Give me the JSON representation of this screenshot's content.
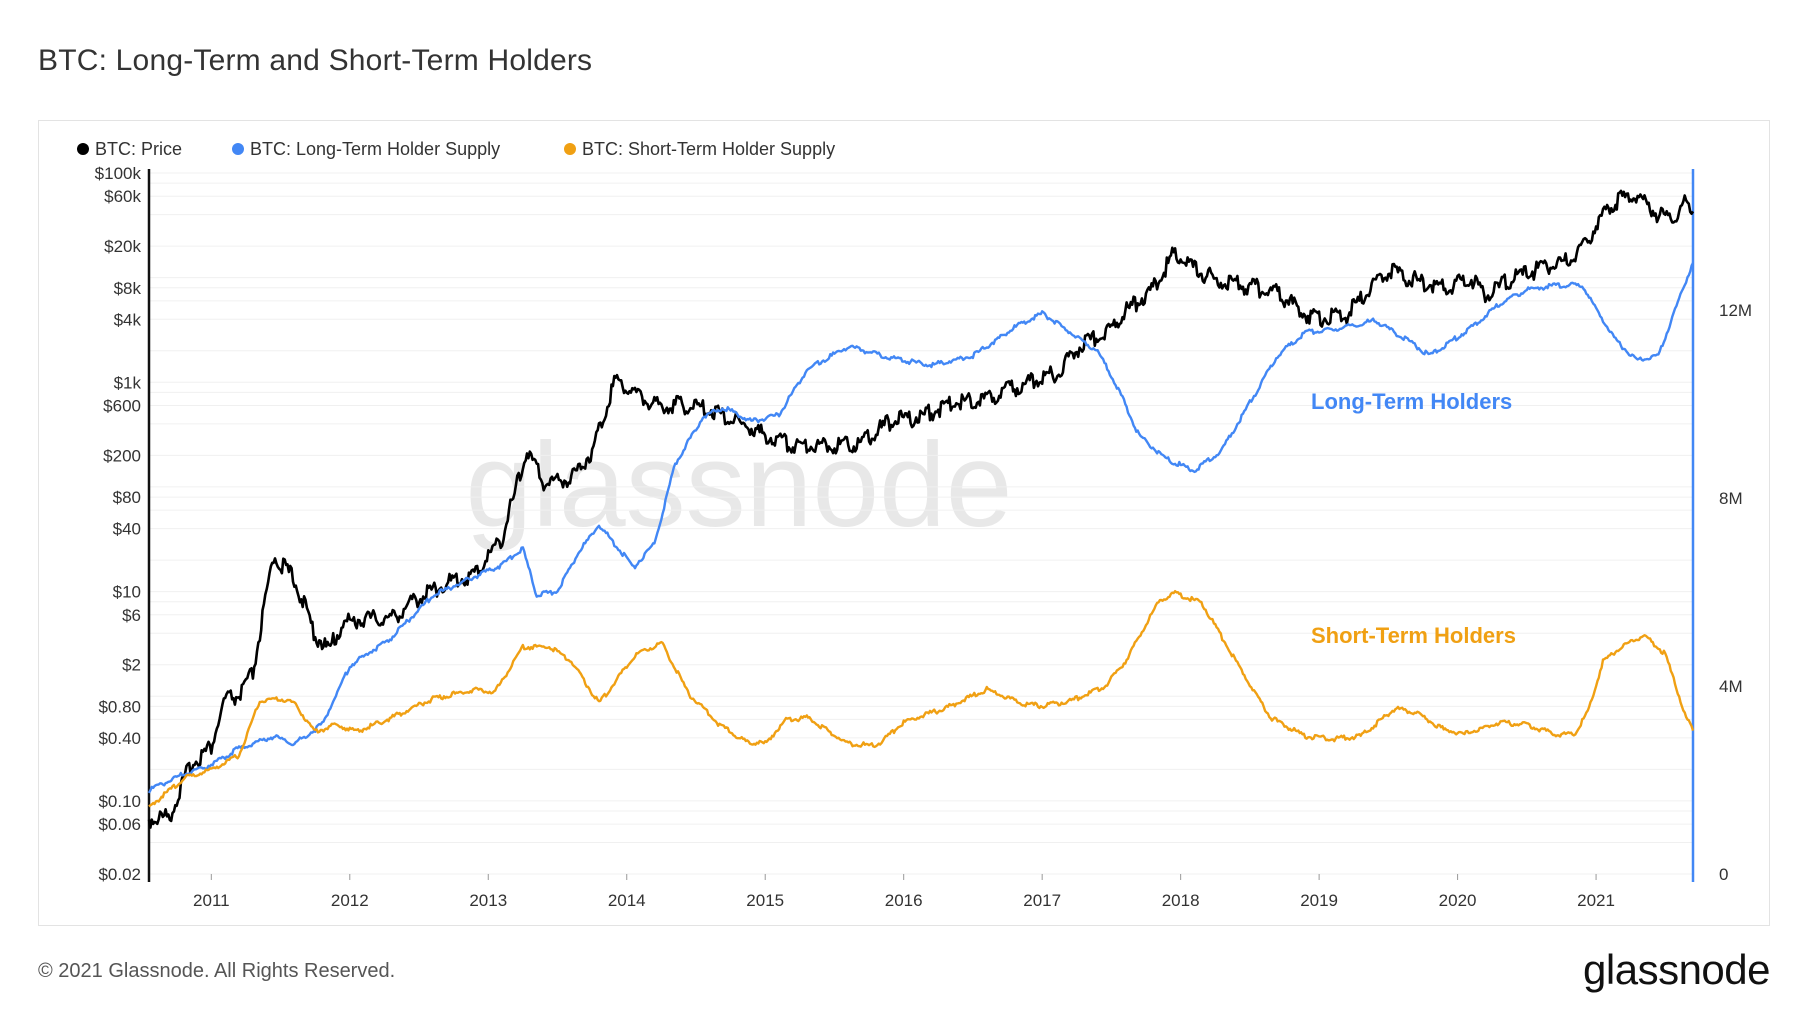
{
  "page": {
    "title": "BTC: Long-Term and Short-Term Holders",
    "copyright": "© 2021 Glassnode. All Rights Reserved.",
    "brand": "glassnode",
    "watermark": "glassnode"
  },
  "chart_data": {
    "type": "line",
    "title": "BTC: Long-Term and Short-Term Holders",
    "x_axis": {
      "ticks": [
        "2011",
        "2012",
        "2013",
        "2014",
        "2015",
        "2016",
        "2017",
        "2018",
        "2019",
        "2020",
        "2021"
      ],
      "range": [
        "2010-07",
        "2021-09"
      ]
    },
    "y_left": {
      "scale": "log",
      "ticks": [
        "$100k",
        "$60k",
        "$20k",
        "$8k",
        "$4k",
        "$1k",
        "$600",
        "$200",
        "$80",
        "$40",
        "$10",
        "$6",
        "$2",
        "$0.80",
        "$0.40",
        "$0.10",
        "$0.06",
        "$0.02"
      ],
      "tick_values": [
        100000,
        60000,
        20000,
        8000,
        4000,
        1000,
        600,
        200,
        80,
        40,
        10,
        6,
        2,
        0.8,
        0.4,
        0.1,
        0.06,
        0.02
      ],
      "range": [
        0.02,
        100000
      ]
    },
    "y_right": {
      "scale": "linear",
      "ticks": [
        "12M",
        "8M",
        "4M",
        "0"
      ],
      "tick_values": [
        12000000,
        8000000,
        4000000,
        0
      ],
      "range": [
        0,
        12000000
      ]
    },
    "legend": {
      "position": "top-left",
      "entries": [
        "BTC: Price",
        "BTC: Long-Term Holder Supply",
        "BTC: Short-Term Holder Supply"
      ]
    },
    "annotations": [
      {
        "text": "Long-Term Holders",
        "color": "#4287f5"
      },
      {
        "text": "Short-Term Holders",
        "color": "#f0a013"
      }
    ],
    "series": [
      {
        "name": "BTC: Price",
        "axis": "left",
        "color": "#000000",
        "x": [
          2010.55,
          2010.7,
          2010.85,
          2011.0,
          2011.1,
          2011.2,
          2011.3,
          2011.45,
          2011.6,
          2011.75,
          2011.85,
          2011.95,
          2012.1,
          2012.3,
          2012.5,
          2012.7,
          2012.9,
          2013.1,
          2013.28,
          2013.4,
          2013.6,
          2013.75,
          2013.92,
          2014.0,
          2014.2,
          2014.4,
          2014.6,
          2014.8,
          2015.0,
          2015.2,
          2015.5,
          2015.7,
          2015.9,
          2016.1,
          2016.4,
          2016.6,
          2016.9,
          2017.1,
          2017.3,
          2017.45,
          2017.6,
          2017.8,
          2017.96,
          2018.1,
          2018.3,
          2018.5,
          2018.7,
          2018.9,
          2019.0,
          2019.2,
          2019.5,
          2019.7,
          2019.9,
          2020.1,
          2020.2,
          2020.4,
          2020.6,
          2020.8,
          2020.95,
          2021.1,
          2021.28,
          2021.45,
          2021.55,
          2021.65,
          2021.7
        ],
        "y": [
          0.06,
          0.065,
          0.2,
          0.3,
          0.85,
          0.9,
          1.5,
          20,
          12,
          3.5,
          2.5,
          4.5,
          5,
          5,
          8,
          11,
          13,
          30,
          200,
          100,
          110,
          200,
          1000,
          800,
          550,
          550,
          500,
          380,
          280,
          230,
          230,
          240,
          380,
          420,
          600,
          630,
          900,
          1100,
          2200,
          2600,
          4300,
          7000,
          16000,
          11000,
          8000,
          7500,
          6500,
          4000,
          3700,
          4000,
          10500,
          8500,
          7300,
          9000,
          6000,
          9000,
          11000,
          13000,
          22000,
          45000,
          58000,
          36000,
          34000,
          48000,
          43000
        ]
      },
      {
        "name": "BTC: Long-Term Holder Supply",
        "axis": "right",
        "color": "#4287f5",
        "x": [
          2010.55,
          2010.8,
          2011.0,
          2011.2,
          2011.45,
          2011.6,
          2011.8,
          2012.0,
          2012.3,
          2012.6,
          2012.9,
          2013.1,
          2013.25,
          2013.35,
          2013.5,
          2013.65,
          2013.8,
          2014.05,
          2014.2,
          2014.35,
          2014.55,
          2014.7,
          2014.9,
          2015.1,
          2015.3,
          2015.6,
          2015.9,
          2016.2,
          2016.5,
          2016.8,
          2017.0,
          2017.2,
          2017.4,
          2017.55,
          2017.7,
          2017.9,
          2018.1,
          2018.3,
          2018.5,
          2018.7,
          2018.9,
          2019.1,
          2019.4,
          2019.6,
          2019.8,
          2020.0,
          2020.1,
          2020.3,
          2020.5,
          2020.7,
          2020.9,
          2021.0,
          2021.15,
          2021.3,
          2021.45,
          2021.6,
          2021.7
        ],
        "y": [
          1.75,
          2.1,
          2.3,
          2.65,
          2.9,
          2.75,
          3.15,
          4.4,
          5.0,
          5.9,
          6.3,
          6.55,
          6.9,
          5.9,
          6.0,
          6.8,
          7.4,
          6.5,
          7.0,
          8.7,
          9.7,
          9.9,
          9.6,
          9.75,
          10.7,
          11.2,
          10.95,
          10.8,
          11.0,
          11.6,
          11.9,
          11.5,
          11.1,
          10.3,
          9.3,
          8.8,
          8.55,
          9.0,
          10.0,
          11.0,
          11.5,
          11.55,
          11.75,
          11.4,
          11.0,
          11.4,
          11.6,
          12.1,
          12.4,
          12.5,
          12.5,
          12.0,
          11.3,
          10.9,
          11.0,
          12.2,
          13.0
        ]
      },
      {
        "name": "BTC: Short-Term Holder Supply",
        "axis": "right",
        "color": "#f0a013",
        "x": [
          2010.55,
          2010.8,
          2011.0,
          2011.2,
          2011.35,
          2011.5,
          2011.6,
          2011.75,
          2011.9,
          2012.05,
          2012.3,
          2012.6,
          2012.9,
          2013.05,
          2013.25,
          2013.45,
          2013.6,
          2013.8,
          2014.05,
          2014.25,
          2014.45,
          2014.65,
          2014.85,
          2015.0,
          2015.15,
          2015.3,
          2015.6,
          2015.8,
          2016.0,
          2016.3,
          2016.6,
          2016.85,
          2017.0,
          2017.2,
          2017.45,
          2017.6,
          2017.85,
          2017.95,
          2018.15,
          2018.4,
          2018.65,
          2018.9,
          2019.1,
          2019.3,
          2019.55,
          2019.7,
          2019.9,
          2020.05,
          2020.3,
          2020.5,
          2020.7,
          2020.85,
          2020.95,
          2021.05,
          2021.2,
          2021.35,
          2021.5,
          2021.65,
          2021.7
        ],
        "y": [
          1.4,
          2.0,
          2.2,
          2.5,
          3.65,
          3.7,
          3.6,
          3.0,
          3.15,
          3.0,
          3.3,
          3.7,
          3.9,
          3.85,
          4.8,
          4.8,
          4.5,
          3.6,
          4.6,
          4.9,
          3.8,
          3.2,
          2.8,
          2.75,
          3.25,
          3.3,
          2.75,
          2.7,
          3.2,
          3.5,
          3.9,
          3.6,
          3.55,
          3.65,
          3.95,
          4.5,
          5.8,
          5.95,
          5.75,
          4.5,
          3.3,
          2.9,
          2.85,
          2.9,
          3.5,
          3.4,
          3.05,
          2.95,
          3.2,
          3.15,
          2.95,
          2.95,
          3.5,
          4.5,
          4.85,
          5.05,
          4.65,
          3.3,
          3.05
        ]
      }
    ]
  }
}
